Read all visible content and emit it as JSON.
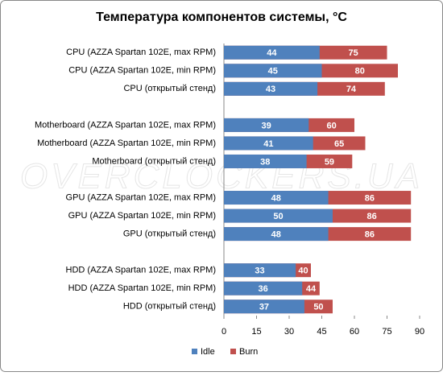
{
  "chart_data": {
    "type": "bar_overlap",
    "orientation": "horizontal",
    "title": "Температура компонентов системы, °C",
    "watermark": "OVERCLOCKERS.UA",
    "categories": [
      "CPU (AZZA Spartan 102E, max RPM)",
      "CPU (AZZA Spartan 102E, min RPM)",
      "CPU (открытый стенд)",
      null,
      "Motherboard (AZZA Spartan 102E, max RPM)",
      "Motherboard (AZZA Spartan 102E, min RPM)",
      "Motherboard (открытый стенд)",
      null,
      "GPU (AZZA Spartan 102E, max RPM)",
      "GPU (AZZA Spartan 102E, min RPM)",
      "GPU (открытый стенд)",
      null,
      "HDD (AZZA Spartan 102E, max RPM)",
      "HDD (AZZA Spartan 102E, min RPM)",
      "HDD (открытый стенд)"
    ],
    "series": [
      {
        "name": "Burn",
        "color": "#c0504d",
        "values": [
          75,
          80,
          74,
          null,
          60,
          65,
          59,
          null,
          86,
          86,
          86,
          null,
          40,
          44,
          50
        ]
      },
      {
        "name": "Idle",
        "color": "#4f81bd",
        "values": [
          44,
          45,
          43,
          null,
          39,
          41,
          38,
          null,
          48,
          50,
          48,
          null,
          33,
          36,
          37
        ]
      }
    ],
    "legend_order": [
      1,
      0
    ],
    "xlim": [
      0,
      90
    ],
    "xticks": [
      0,
      15,
      30,
      45,
      60,
      75,
      90
    ],
    "grid": false,
    "legend": "bottom"
  }
}
